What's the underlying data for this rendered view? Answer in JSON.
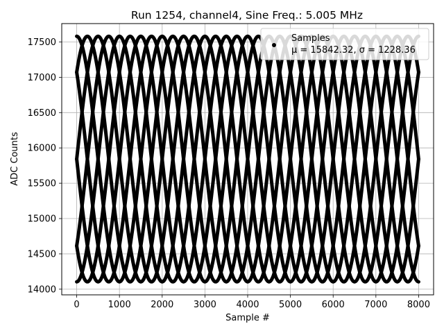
{
  "chart_data": {
    "type": "scatter",
    "title": "Run 1254, channel4, Sine Freq.: 5.005 MHz",
    "xlabel": "Sample #",
    "ylabel": "ADC Counts",
    "xlim": [
      -350,
      8350
    ],
    "ylim": [
      13920,
      17760
    ],
    "xticks": [
      0,
      1000,
      2000,
      3000,
      4000,
      5000,
      6000,
      7000,
      8000
    ],
    "yticks": [
      14000,
      14500,
      15000,
      15500,
      16000,
      16500,
      17000,
      17500
    ],
    "grid": true,
    "legend_position": "top-right",
    "marker_color": "#000000",
    "series": [
      {
        "name": "Samples",
        "stats_label": "μ = 15842.32, σ = 1228.36",
        "description": "Sine wave sampled with aliasing; points trace 8 interleaved sinusoidal curves",
        "mean": 15842.32,
        "amplitude": 1738,
        "curve_period_samples": 2000,
        "num_curves": 8,
        "curve_phase_offsets_deg": [
          0,
          45,
          90,
          135,
          180,
          225,
          270,
          315
        ],
        "x_range": [
          0,
          8000
        ]
      }
    ]
  }
}
